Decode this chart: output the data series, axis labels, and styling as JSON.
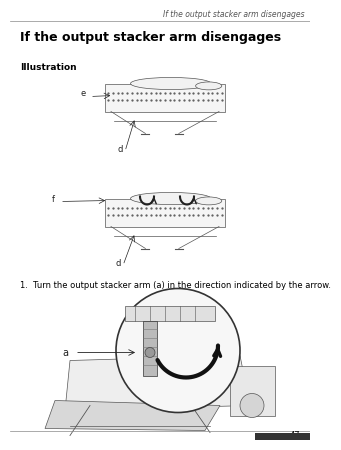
{
  "page_bg": "#ffffff",
  "header_text": "If the output stacker arm disengages",
  "header_color": "#000000",
  "header_font_size": 5.5,
  "title_text": "If the output stacker arm disengages",
  "title_font_size": 9,
  "illustration_label": "Illustration",
  "illustration_label_font_size": 6.5,
  "step_text": "1.  Turn the output stacker arm (a) in the direction indicated by the arrow.",
  "step_font_size": 6,
  "page_number": "47",
  "page_number_font_size": 6,
  "line_color": "#888888",
  "draw_color": "#555555",
  "dark_color": "#222222"
}
